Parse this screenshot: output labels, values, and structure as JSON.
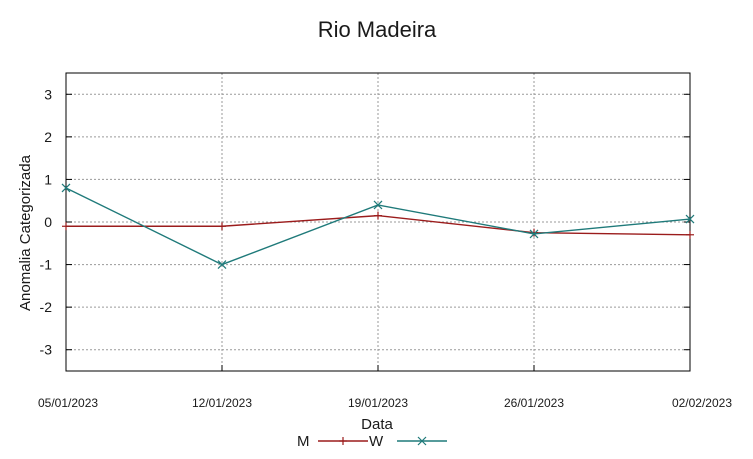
{
  "colors": {
    "series_M": "#9b1c1c",
    "series_W": "#1f7a7a",
    "background": "#ffffff",
    "grid": "#9a9a9a"
  },
  "chart_data": {
    "type": "line",
    "title": "Rio Madeira",
    "xlabel": "Data",
    "ylabel": "Anomalia Categorizada",
    "x": [
      "05/01/2023",
      "12/01/2023",
      "19/01/2023",
      "26/01/2023",
      "02/02/2023"
    ],
    "ylim": [
      -3.5,
      3.5
    ],
    "yticks": [
      3,
      2,
      1,
      0,
      -1,
      -2,
      -3
    ],
    "grid": true,
    "legend_position": "bottom-center",
    "series": [
      {
        "name": "M",
        "marker": "+",
        "values": [
          -0.1,
          -0.1,
          0.15,
          -0.25,
          -0.3
        ]
      },
      {
        "name": "W",
        "marker": "x",
        "values": [
          0.8,
          -1.0,
          0.4,
          -0.28,
          0.07
        ]
      }
    ]
  }
}
